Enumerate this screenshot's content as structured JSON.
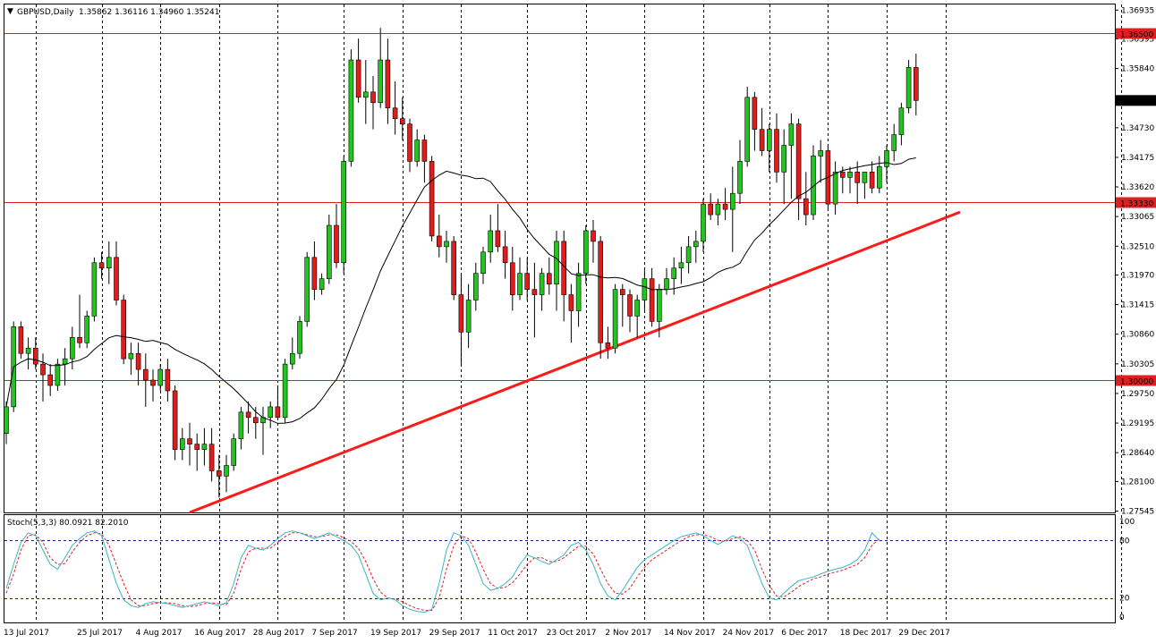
{
  "header": {
    "menu_arrow": "▼",
    "symbol_label": "GBPUSD,Daily",
    "ohlc": "1.35862 1.36116 1.34960 1.35241"
  },
  "indicator": {
    "label": "Stoch(5,3,3) 80.0921 82.2010"
  },
  "colors": {
    "up": "#21c51d",
    "down": "#e21b1b",
    "wick": "#000000",
    "level_line": "#e02020",
    "trendline": "#ff1a1a",
    "ma": "#000000",
    "stoch_main": "#3ab6c6",
    "stoch_signal": "#e02020",
    "stoch_levels": "#1010c8",
    "grid": "#000000"
  },
  "chart_data": {
    "type": "candlestick",
    "symbol": "GBPUSD",
    "timeframe": "Daily",
    "price_axis_ticks": [
      "1.36935",
      "1.36395",
      "1.35840",
      "1.34730",
      "1.34175",
      "1.33620",
      "1.33065",
      "1.32510",
      "1.31970",
      "1.31415",
      "1.30860",
      "1.30305",
      "1.29750",
      "1.29195",
      "1.28640",
      "1.28100",
      "1.27545"
    ],
    "price_range": [
      1.2752,
      1.3704
    ],
    "horizontal_levels": [
      {
        "value": 1.365,
        "label": "1.36500"
      },
      {
        "value": 1.3333,
        "label": "1.33330"
      },
      {
        "value": 1.3,
        "label": "1.30000"
      }
    ],
    "current_price": {
      "value": 1.35241,
      "label": "1.35241"
    },
    "date_labels": [
      {
        "label": "13 Jul 2017",
        "bar": 0
      },
      {
        "label": "25 Jul 2017",
        "bar": 10
      },
      {
        "label": "4 Aug 2017",
        "bar": 18
      },
      {
        "label": "16 Aug 2017",
        "bar": 26
      },
      {
        "label": "28 Aug 2017",
        "bar": 34
      },
      {
        "label": "7 Sep 2017",
        "bar": 42
      },
      {
        "label": "19 Sep 2017",
        "bar": 50
      },
      {
        "label": "29 Sep 2017",
        "bar": 58
      },
      {
        "label": "11 Oct 2017",
        "bar": 66
      },
      {
        "label": "23 Oct 2017",
        "bar": 74
      },
      {
        "label": "2 Nov 2017",
        "bar": 82
      },
      {
        "label": "14 Nov 2017",
        "bar": 90
      },
      {
        "label": "24 Nov 2017",
        "bar": 98
      },
      {
        "label": "6 Dec 2017",
        "bar": 106
      },
      {
        "label": "18 Dec 2017",
        "bar": 114
      },
      {
        "label": "29 Dec 2017",
        "bar": 122
      }
    ],
    "vertical_grid_bars": [
      4,
      13,
      21,
      29,
      37,
      46,
      54,
      62,
      71,
      79,
      87,
      95,
      104,
      112,
      120,
      128,
      152
    ],
    "ohlc": [
      [
        1.29,
        1.296,
        1.288,
        1.295
      ],
      [
        1.295,
        1.311,
        1.294,
        1.31
      ],
      [
        1.31,
        1.311,
        1.304,
        1.305
      ],
      [
        1.305,
        1.308,
        1.302,
        1.306
      ],
      [
        1.306,
        1.308,
        1.302,
        1.303
      ],
      [
        1.303,
        1.305,
        1.296,
        1.301
      ],
      [
        1.301,
        1.303,
        1.297,
        1.299
      ],
      [
        1.299,
        1.304,
        1.298,
        1.303
      ],
      [
        1.303,
        1.306,
        1.299,
        1.304
      ],
      [
        1.304,
        1.31,
        1.302,
        1.308
      ],
      [
        1.308,
        1.316,
        1.306,
        1.307
      ],
      [
        1.307,
        1.313,
        1.306,
        1.312
      ],
      [
        1.312,
        1.323,
        1.311,
        1.322
      ],
      [
        1.322,
        1.324,
        1.319,
        1.321
      ],
      [
        1.321,
        1.326,
        1.318,
        1.323
      ],
      [
        1.323,
        1.326,
        1.314,
        1.315
      ],
      [
        1.315,
        1.316,
        1.303,
        1.304
      ],
      [
        1.304,
        1.307,
        1.301,
        1.305
      ],
      [
        1.305,
        1.307,
        1.299,
        1.302
      ],
      [
        1.302,
        1.305,
        1.295,
        1.3
      ],
      [
        1.3,
        1.302,
        1.296,
        1.299
      ],
      [
        1.299,
        1.303,
        1.298,
        1.302
      ],
      [
        1.302,
        1.304,
        1.296,
        1.298
      ],
      [
        1.298,
        1.299,
        1.285,
        1.287
      ],
      [
        1.287,
        1.291,
        1.285,
        1.289
      ],
      [
        1.289,
        1.292,
        1.284,
        1.288
      ],
      [
        1.288,
        1.29,
        1.283,
        1.287
      ],
      [
        1.287,
        1.291,
        1.284,
        1.288
      ],
      [
        1.288,
        1.291,
        1.281,
        1.283
      ],
      [
        1.283,
        1.286,
        1.278,
        1.282
      ],
      [
        1.282,
        1.286,
        1.279,
        1.284
      ],
      [
        1.284,
        1.29,
        1.283,
        1.289
      ],
      [
        1.289,
        1.295,
        1.287,
        1.294
      ],
      [
        1.294,
        1.296,
        1.29,
        1.293
      ],
      [
        1.293,
        1.295,
        1.289,
        1.292
      ],
      [
        1.292,
        1.295,
        1.286,
        1.293
      ],
      [
        1.293,
        1.296,
        1.291,
        1.295
      ],
      [
        1.295,
        1.299,
        1.293,
        1.293
      ],
      [
        1.293,
        1.304,
        1.292,
        1.303
      ],
      [
        1.303,
        1.308,
        1.302,
        1.305
      ],
      [
        1.305,
        1.312,
        1.304,
        1.311
      ],
      [
        1.311,
        1.324,
        1.31,
        1.323
      ],
      [
        1.323,
        1.326,
        1.315,
        1.317
      ],
      [
        1.317,
        1.32,
        1.316,
        1.319
      ],
      [
        1.319,
        1.331,
        1.318,
        1.329
      ],
      [
        1.329,
        1.333,
        1.321,
        1.322
      ],
      [
        1.322,
        1.342,
        1.32,
        1.341
      ],
      [
        1.341,
        1.362,
        1.34,
        1.36
      ],
      [
        1.36,
        1.364,
        1.352,
        1.353
      ],
      [
        1.353,
        1.36,
        1.348,
        1.354
      ],
      [
        1.354,
        1.357,
        1.347,
        1.352
      ],
      [
        1.352,
        1.366,
        1.351,
        1.36
      ],
      [
        1.36,
        1.364,
        1.348,
        1.351
      ],
      [
        1.351,
        1.356,
        1.346,
        1.349
      ],
      [
        1.349,
        1.353,
        1.345,
        1.348
      ],
      [
        1.348,
        1.349,
        1.339,
        1.341
      ],
      [
        1.341,
        1.347,
        1.34,
        1.345
      ],
      [
        1.345,
        1.346,
        1.337,
        1.341
      ],
      [
        1.341,
        1.342,
        1.326,
        1.327
      ],
      [
        1.327,
        1.331,
        1.323,
        1.325
      ],
      [
        1.325,
        1.328,
        1.322,
        1.326
      ],
      [
        1.326,
        1.327,
        1.315,
        1.316
      ],
      [
        1.316,
        1.32,
        1.303,
        1.309
      ],
      [
        1.309,
        1.318,
        1.306,
        1.315
      ],
      [
        1.315,
        1.322,
        1.313,
        1.32
      ],
      [
        1.32,
        1.325,
        1.318,
        1.324
      ],
      [
        1.324,
        1.331,
        1.322,
        1.328
      ],
      [
        1.328,
        1.333,
        1.324,
        1.325
      ],
      [
        1.325,
        1.328,
        1.319,
        1.322
      ],
      [
        1.322,
        1.325,
        1.313,
        1.316
      ],
      [
        1.316,
        1.323,
        1.315,
        1.32
      ],
      [
        1.32,
        1.323,
        1.315,
        1.317
      ],
      [
        1.317,
        1.322,
        1.308,
        1.316
      ],
      [
        1.316,
        1.321,
        1.313,
        1.32
      ],
      [
        1.32,
        1.323,
        1.316,
        1.318
      ],
      [
        1.318,
        1.328,
        1.313,
        1.326
      ],
      [
        1.326,
        1.328,
        1.311,
        1.316
      ],
      [
        1.316,
        1.318,
        1.307,
        1.313
      ],
      [
        1.313,
        1.322,
        1.31,
        1.32
      ],
      [
        1.32,
        1.329,
        1.318,
        1.328
      ],
      [
        1.328,
        1.33,
        1.322,
        1.326
      ],
      [
        1.326,
        1.327,
        1.304,
        1.307
      ],
      [
        1.307,
        1.31,
        1.304,
        1.306
      ],
      [
        1.306,
        1.318,
        1.305,
        1.317
      ],
      [
        1.317,
        1.318,
        1.31,
        1.316
      ],
      [
        1.316,
        1.317,
        1.309,
        1.312
      ],
      [
        1.312,
        1.316,
        1.308,
        1.315
      ],
      [
        1.315,
        1.321,
        1.313,
        1.319
      ],
      [
        1.319,
        1.321,
        1.31,
        1.311
      ],
      [
        1.311,
        1.318,
        1.308,
        1.317
      ],
      [
        1.317,
        1.321,
        1.316,
        1.319
      ],
      [
        1.319,
        1.323,
        1.316,
        1.321
      ],
      [
        1.321,
        1.325,
        1.318,
        1.322
      ],
      [
        1.322,
        1.327,
        1.32,
        1.325
      ],
      [
        1.325,
        1.328,
        1.322,
        1.326
      ],
      [
        1.326,
        1.334,
        1.324,
        1.333
      ],
      [
        1.333,
        1.335,
        1.33,
        1.331
      ],
      [
        1.331,
        1.334,
        1.329,
        1.333
      ],
      [
        1.333,
        1.336,
        1.33,
        1.332
      ],
      [
        1.332,
        1.34,
        1.324,
        1.335
      ],
      [
        1.335,
        1.345,
        1.333,
        1.341
      ],
      [
        1.341,
        1.355,
        1.34,
        1.353
      ],
      [
        1.353,
        1.354,
        1.343,
        1.347
      ],
      [
        1.347,
        1.351,
        1.342,
        1.343
      ],
      [
        1.343,
        1.348,
        1.339,
        1.347
      ],
      [
        1.347,
        1.35,
        1.337,
        1.339
      ],
      [
        1.339,
        1.347,
        1.333,
        1.344
      ],
      [
        1.344,
        1.35,
        1.334,
        1.348
      ],
      [
        1.348,
        1.349,
        1.33,
        1.334
      ],
      [
        1.334,
        1.339,
        1.329,
        1.331
      ],
      [
        1.331,
        1.344,
        1.33,
        1.342
      ],
      [
        1.342,
        1.345,
        1.337,
        1.343
      ],
      [
        1.343,
        1.344,
        1.332,
        1.333
      ],
      [
        1.333,
        1.341,
        1.331,
        1.339
      ],
      [
        1.339,
        1.34,
        1.335,
        1.338
      ],
      [
        1.338,
        1.34,
        1.335,
        1.339
      ],
      [
        1.339,
        1.341,
        1.333,
        1.337
      ],
      [
        1.337,
        1.339,
        1.334,
        1.339
      ],
      [
        1.339,
        1.341,
        1.335,
        1.336
      ],
      [
        1.336,
        1.342,
        1.335,
        1.34
      ],
      [
        1.34,
        1.344,
        1.337,
        1.343
      ],
      [
        1.343,
        1.348,
        1.341,
        1.346
      ],
      [
        1.346,
        1.352,
        1.344,
        1.351
      ],
      [
        1.351,
        1.36,
        1.35,
        1.3586
      ],
      [
        1.3586,
        1.36116,
        1.3496,
        1.35241
      ]
    ],
    "moving_average": {
      "type": "SMA",
      "period": 20
    },
    "stochastic": {
      "name": "Stoch(5,3,3)",
      "main_last": 80.0921,
      "signal_last": 82.201,
      "levels": [
        80,
        20
      ],
      "axis_ticks": [
        "100",
        "80",
        "20",
        "0"
      ],
      "range": [
        0,
        100
      ],
      "main": [
        30,
        55,
        78,
        88,
        85,
        70,
        55,
        50,
        62,
        75,
        82,
        88,
        90,
        85,
        60,
        35,
        18,
        12,
        10,
        14,
        16,
        15,
        14,
        12,
        10,
        12,
        14,
        16,
        14,
        12,
        15,
        35,
        62,
        75,
        72,
        70,
        75,
        82,
        88,
        90,
        88,
        85,
        82,
        85,
        88,
        84,
        80,
        75,
        65,
        45,
        25,
        18,
        20,
        18,
        12,
        8,
        6,
        5,
        8,
        35,
        70,
        88,
        85,
        75,
        55,
        35,
        28,
        30,
        35,
        42,
        55,
        65,
        62,
        58,
        55,
        60,
        65,
        75,
        78,
        70,
        55,
        35,
        22,
        18,
        28,
        40,
        52,
        60,
        65,
        70,
        75,
        80,
        84,
        86,
        88,
        85,
        80,
        76,
        80,
        85,
        82,
        75,
        55,
        35,
        20,
        18,
        25,
        32,
        38,
        40,
        42,
        45,
        48,
        50,
        52,
        55,
        60,
        70,
        88,
        80
      ],
      "signal": [
        25,
        45,
        70,
        85,
        86,
        78,
        62,
        55,
        56,
        68,
        78,
        85,
        88,
        87,
        75,
        55,
        35,
        18,
        12,
        12,
        14,
        15,
        15,
        14,
        12,
        11,
        12,
        14,
        15,
        14,
        13,
        25,
        50,
        68,
        72,
        72,
        72,
        78,
        84,
        88,
        88,
        86,
        84,
        84,
        86,
        86,
        83,
        79,
        72,
        58,
        40,
        26,
        20,
        19,
        16,
        12,
        9,
        7,
        7,
        20,
        50,
        75,
        85,
        82,
        68,
        50,
        35,
        30,
        31,
        36,
        45,
        55,
        62,
        62,
        58,
        58,
        62,
        68,
        74,
        74,
        66,
        50,
        35,
        25,
        24,
        30,
        42,
        52,
        60,
        65,
        70,
        75,
        80,
        84,
        86,
        86,
        84,
        80,
        79,
        82,
        84,
        80,
        70,
        50,
        33,
        22,
        21,
        26,
        32,
        36,
        40,
        42,
        45,
        47,
        49,
        52,
        55,
        62,
        75,
        82
      ]
    }
  }
}
